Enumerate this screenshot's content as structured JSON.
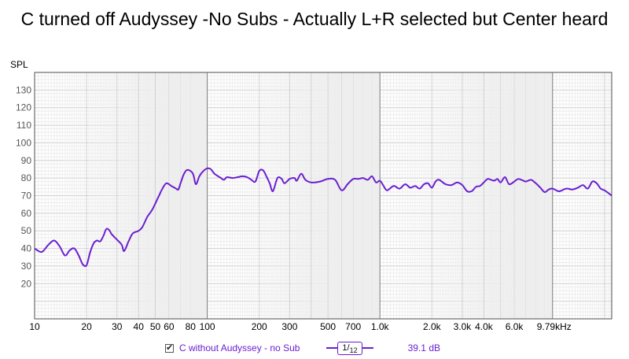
{
  "chart_data": {
    "type": "line",
    "title": "C turned off Audyssey -No Subs - Actually L+R selected but Center heard",
    "ylabel": "SPL",
    "xlabel": "",
    "x_scale": "log",
    "xlim": [
      10,
      22000
    ],
    "ylim": [
      0,
      140
    ],
    "y_ticks": [
      20,
      30,
      40,
      50,
      60,
      70,
      80,
      90,
      100,
      110,
      120,
      130
    ],
    "x_ticks": [
      {
        "value": 10,
        "label": "10"
      },
      {
        "value": 20,
        "label": "20"
      },
      {
        "value": 30,
        "label": "30"
      },
      {
        "value": 40,
        "label": "40"
      },
      {
        "value": 50,
        "label": "50"
      },
      {
        "value": 60,
        "label": "60"
      },
      {
        "value": 80,
        "label": "80"
      },
      {
        "value": 100,
        "label": "100"
      },
      {
        "value": 200,
        "label": "200"
      },
      {
        "value": 300,
        "label": "300"
      },
      {
        "value": 500,
        "label": "500"
      },
      {
        "value": 700,
        "label": "700"
      },
      {
        "value": 1000,
        "label": "1.0k"
      },
      {
        "value": 2000,
        "label": "2.0k"
      },
      {
        "value": 3000,
        "label": "3.0k"
      },
      {
        "value": 4000,
        "label": "4.0k"
      },
      {
        "value": 6000,
        "label": "6.0k"
      },
      {
        "value": 9790,
        "label": "9.79kHz"
      }
    ],
    "grid": true,
    "series": [
      {
        "name": "C without Audyssey - no Sub",
        "color": "#6a1fd0",
        "points": [
          [
            10,
            40
          ],
          [
            11,
            38
          ],
          [
            12,
            42
          ],
          [
            13,
            44.5
          ],
          [
            14,
            41
          ],
          [
            15,
            36
          ],
          [
            16,
            39
          ],
          [
            17,
            40
          ],
          [
            18,
            36
          ],
          [
            19,
            31
          ],
          [
            20,
            30.5
          ],
          [
            21,
            38
          ],
          [
            22,
            43
          ],
          [
            23,
            44.5
          ],
          [
            24,
            44
          ],
          [
            25,
            47
          ],
          [
            26,
            51
          ],
          [
            27,
            50.5
          ],
          [
            28,
            48
          ],
          [
            30,
            45
          ],
          [
            32,
            42
          ],
          [
            33,
            38.5
          ],
          [
            35,
            44
          ],
          [
            37,
            48.5
          ],
          [
            40,
            50
          ],
          [
            42,
            52
          ],
          [
            45,
            58
          ],
          [
            48,
            62
          ],
          [
            52,
            69
          ],
          [
            55,
            74
          ],
          [
            58,
            77
          ],
          [
            62,
            75.5
          ],
          [
            66,
            74
          ],
          [
            68,
            73.5
          ],
          [
            70,
            77
          ],
          [
            73,
            82
          ],
          [
            76,
            84.5
          ],
          [
            80,
            84
          ],
          [
            83,
            82
          ],
          [
            86,
            76.5
          ],
          [
            90,
            81
          ],
          [
            95,
            84
          ],
          [
            100,
            85.5
          ],
          [
            105,
            85
          ],
          [
            110,
            82.5
          ],
          [
            120,
            80
          ],
          [
            125,
            79
          ],
          [
            130,
            80.5
          ],
          [
            140,
            80
          ],
          [
            150,
            80.5
          ],
          [
            160,
            81
          ],
          [
            170,
            80.5
          ],
          [
            180,
            79
          ],
          [
            190,
            78
          ],
          [
            200,
            84
          ],
          [
            210,
            84.5
          ],
          [
            220,
            81
          ],
          [
            230,
            77
          ],
          [
            240,
            72.5
          ],
          [
            255,
            80
          ],
          [
            270,
            79.5
          ],
          [
            280,
            77
          ],
          [
            300,
            79.5
          ],
          [
            320,
            80
          ],
          [
            330,
            78.5
          ],
          [
            350,
            82.5
          ],
          [
            370,
            79
          ],
          [
            400,
            77.5
          ],
          [
            450,
            78
          ],
          [
            500,
            79.5
          ],
          [
            550,
            79
          ],
          [
            600,
            73
          ],
          [
            650,
            76.5
          ],
          [
            700,
            79.5
          ],
          [
            750,
            79.5
          ],
          [
            800,
            80
          ],
          [
            850,
            79
          ],
          [
            900,
            81
          ],
          [
            950,
            77.5
          ],
          [
            1000,
            78.5
          ],
          [
            1050,
            75.5
          ],
          [
            1100,
            73
          ],
          [
            1200,
            75.5
          ],
          [
            1300,
            74
          ],
          [
            1400,
            76.5
          ],
          [
            1500,
            74.5
          ],
          [
            1600,
            75.5
          ],
          [
            1700,
            74
          ],
          [
            1800,
            76.5
          ],
          [
            1900,
            77
          ],
          [
            2000,
            74.5
          ],
          [
            2100,
            78
          ],
          [
            2200,
            79
          ],
          [
            2400,
            76.5
          ],
          [
            2600,
            76
          ],
          [
            2800,
            77.5
          ],
          [
            3000,
            76
          ],
          [
            3200,
            72.5
          ],
          [
            3400,
            72.5
          ],
          [
            3600,
            75
          ],
          [
            3800,
            75.5
          ],
          [
            4000,
            77.5
          ],
          [
            4200,
            79.5
          ],
          [
            4400,
            79
          ],
          [
            4600,
            78.5
          ],
          [
            4800,
            79.5
          ],
          [
            5000,
            77.5
          ],
          [
            5300,
            80.5
          ],
          [
            5600,
            76.5
          ],
          [
            6000,
            78
          ],
          [
            6300,
            79.5
          ],
          [
            6600,
            79
          ],
          [
            7000,
            78
          ],
          [
            7500,
            79
          ],
          [
            8000,
            77
          ],
          [
            8500,
            74.5
          ],
          [
            9000,
            72
          ],
          [
            9500,
            73.5
          ],
          [
            10000,
            74
          ],
          [
            10500,
            73
          ],
          [
            11000,
            72.5
          ],
          [
            12000,
            74
          ],
          [
            13000,
            73.5
          ],
          [
            14000,
            74.5
          ],
          [
            15000,
            76
          ],
          [
            16000,
            74
          ],
          [
            17000,
            78
          ],
          [
            18000,
            77
          ],
          [
            19000,
            74
          ],
          [
            20000,
            73
          ],
          [
            21000,
            71.5
          ],
          [
            22000,
            70
          ]
        ]
      }
    ]
  },
  "legend": {
    "checkbox_checked": true,
    "series_label": "C without Audyssey - no Sub",
    "smoothing_num": "1",
    "smoothing_den": "12",
    "offset_label": "39.1 dB"
  }
}
